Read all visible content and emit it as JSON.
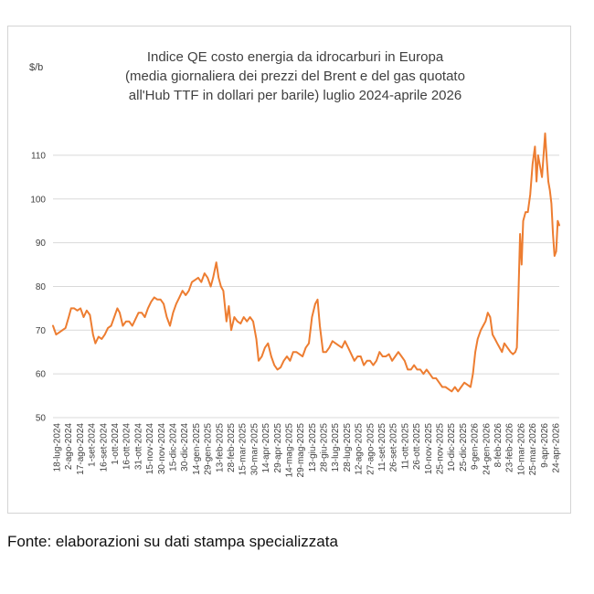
{
  "chart_data": {
    "type": "line",
    "title_lines": [
      "Indice QE costo  energia da idrocarburi in Europa",
      "(media giornaliera dei prezzi del Brent e del gas quotato",
      "all'Hub TTF in dollari per barile) luglio 2024-aprile 2026"
    ],
    "ylabel": "$/b",
    "xlabel": "",
    "ylim": [
      50,
      115
    ],
    "yticks": [
      50,
      60,
      70,
      80,
      90,
      100,
      110
    ],
    "grid": "horizontal",
    "line_color": "#ed7d31",
    "grid_color": "#d9d9d9",
    "x_ticks": [
      "18-lug-2024",
      "2-ago-2024",
      "17-ago-2024",
      "1-set-2024",
      "16-set-2024",
      "1-ott-2024",
      "16-ott-2024",
      "31-ott-2024",
      "15-nov-2024",
      "30-nov-2024",
      "15-dic-2024",
      "30-dic-2024",
      "14-gen-2025",
      "29-gen-2025",
      "13-feb-2025",
      "28-feb-2025",
      "15-mar-2025",
      "30-mar-2025",
      "14-apr-2025",
      "29-apr-2025",
      "14-mag-2025",
      "29-mag-2025",
      "13-giu-2025",
      "28-giu-2025",
      "13-lug-2025",
      "28-lug-2025",
      "12-ago-2025",
      "27-ago-2025",
      "11-set-2025",
      "26-set-2025",
      "11-ott-2025",
      "26-ott-2025",
      "10-nov-2025",
      "25-nov-2025",
      "10-dic-2025",
      "25-dic-2025",
      "9-gen-2026",
      "24-gen-2026",
      "8-feb-2026",
      "23-feb-2026",
      "10-mar-2026",
      "25-mar-2026",
      "9-apr-2026",
      "24-apr-2026"
    ],
    "x_range": [
      "2024-07-18",
      "2026-04-24"
    ],
    "series": [
      {
        "points": [
          [
            "2024-07-18",
            71
          ],
          [
            "2024-07-22",
            69
          ],
          [
            "2024-07-26",
            69.5
          ],
          [
            "2024-07-30",
            70
          ],
          [
            "2024-08-03",
            70.5
          ],
          [
            "2024-08-07",
            73
          ],
          [
            "2024-08-10",
            75
          ],
          [
            "2024-08-14",
            75
          ],
          [
            "2024-08-18",
            74.5
          ],
          [
            "2024-08-22",
            75
          ],
          [
            "2024-08-26",
            73
          ],
          [
            "2024-08-30",
            74.5
          ],
          [
            "2024-09-03",
            73.5
          ],
          [
            "2024-09-07",
            69
          ],
          [
            "2024-09-10",
            67
          ],
          [
            "2024-09-14",
            68.5
          ],
          [
            "2024-09-18",
            68
          ],
          [
            "2024-09-22",
            69
          ],
          [
            "2024-09-26",
            70.5
          ],
          [
            "2024-09-30",
            71
          ],
          [
            "2024-10-04",
            73
          ],
          [
            "2024-10-08",
            75
          ],
          [
            "2024-10-11",
            74
          ],
          [
            "2024-10-15",
            71
          ],
          [
            "2024-10-19",
            72
          ],
          [
            "2024-10-23",
            72
          ],
          [
            "2024-10-27",
            71
          ],
          [
            "2024-10-31",
            72.5
          ],
          [
            "2024-11-04",
            74
          ],
          [
            "2024-11-08",
            74
          ],
          [
            "2024-11-12",
            73
          ],
          [
            "2024-11-16",
            75
          ],
          [
            "2024-11-20",
            76.5
          ],
          [
            "2024-11-24",
            77.5
          ],
          [
            "2024-11-28",
            77
          ],
          [
            "2024-12-02",
            77
          ],
          [
            "2024-12-06",
            76
          ],
          [
            "2024-12-10",
            73
          ],
          [
            "2024-12-14",
            71
          ],
          [
            "2024-12-18",
            74
          ],
          [
            "2024-12-22",
            76
          ],
          [
            "2024-12-26",
            77.5
          ],
          [
            "2024-12-30",
            79
          ],
          [
            "2025-01-03",
            78
          ],
          [
            "2025-01-07",
            79
          ],
          [
            "2025-01-11",
            81
          ],
          [
            "2025-01-15",
            81.5
          ],
          [
            "2025-01-19",
            82
          ],
          [
            "2025-01-23",
            81
          ],
          [
            "2025-01-27",
            83
          ],
          [
            "2025-01-31",
            82
          ],
          [
            "2025-02-04",
            80
          ],
          [
            "2025-02-07",
            82
          ],
          [
            "2025-02-11",
            85.5
          ],
          [
            "2025-02-14",
            82
          ],
          [
            "2025-02-17",
            80
          ],
          [
            "2025-02-20",
            79
          ],
          [
            "2025-02-24",
            72
          ],
          [
            "2025-02-27",
            75.5
          ],
          [
            "2025-03-02",
            70
          ],
          [
            "2025-03-06",
            73
          ],
          [
            "2025-03-10",
            72
          ],
          [
            "2025-03-14",
            71.5
          ],
          [
            "2025-03-18",
            73
          ],
          [
            "2025-03-22",
            72
          ],
          [
            "2025-03-26",
            73
          ],
          [
            "2025-03-30",
            72
          ],
          [
            "2025-04-03",
            68
          ],
          [
            "2025-04-06",
            63
          ],
          [
            "2025-04-10",
            64
          ],
          [
            "2025-04-14",
            66
          ],
          [
            "2025-04-18",
            67
          ],
          [
            "2025-04-22",
            64
          ],
          [
            "2025-04-26",
            62
          ],
          [
            "2025-04-30",
            61
          ],
          [
            "2025-05-04",
            61.5
          ],
          [
            "2025-05-08",
            63
          ],
          [
            "2025-05-12",
            64
          ],
          [
            "2025-05-16",
            63
          ],
          [
            "2025-05-20",
            65
          ],
          [
            "2025-05-24",
            65
          ],
          [
            "2025-05-28",
            64.5
          ],
          [
            "2025-06-01",
            64
          ],
          [
            "2025-06-05",
            66
          ],
          [
            "2025-06-09",
            67
          ],
          [
            "2025-06-13",
            73
          ],
          [
            "2025-06-17",
            76
          ],
          [
            "2025-06-20",
            77
          ],
          [
            "2025-06-23",
            71
          ],
          [
            "2025-06-27",
            65
          ],
          [
            "2025-07-01",
            65
          ],
          [
            "2025-07-05",
            66
          ],
          [
            "2025-07-09",
            67.5
          ],
          [
            "2025-07-13",
            67
          ],
          [
            "2025-07-17",
            66.5
          ],
          [
            "2025-07-21",
            66
          ],
          [
            "2025-07-25",
            67.5
          ],
          [
            "2025-07-29",
            66
          ],
          [
            "2025-08-02",
            64.5
          ],
          [
            "2025-08-06",
            63
          ],
          [
            "2025-08-10",
            64
          ],
          [
            "2025-08-14",
            64
          ],
          [
            "2025-08-18",
            62
          ],
          [
            "2025-08-22",
            63
          ],
          [
            "2025-08-26",
            63
          ],
          [
            "2025-08-30",
            62
          ],
          [
            "2025-09-03",
            63
          ],
          [
            "2025-09-07",
            65
          ],
          [
            "2025-09-11",
            64
          ],
          [
            "2025-09-15",
            64
          ],
          [
            "2025-09-19",
            64.5
          ],
          [
            "2025-09-23",
            63
          ],
          [
            "2025-09-27",
            64
          ],
          [
            "2025-10-01",
            65
          ],
          [
            "2025-10-05",
            64
          ],
          [
            "2025-10-09",
            63
          ],
          [
            "2025-10-13",
            61
          ],
          [
            "2025-10-17",
            61
          ],
          [
            "2025-10-21",
            62
          ],
          [
            "2025-10-25",
            61
          ],
          [
            "2025-10-29",
            61
          ],
          [
            "2025-11-02",
            60
          ],
          [
            "2025-11-06",
            61
          ],
          [
            "2025-11-10",
            60
          ],
          [
            "2025-11-14",
            59
          ],
          [
            "2025-11-18",
            59
          ],
          [
            "2025-11-22",
            58
          ],
          [
            "2025-11-26",
            57
          ],
          [
            "2025-11-30",
            57
          ],
          [
            "2025-12-04",
            56.5
          ],
          [
            "2025-12-08",
            56
          ],
          [
            "2025-12-12",
            57
          ],
          [
            "2025-12-16",
            56
          ],
          [
            "2025-12-20",
            57
          ],
          [
            "2025-12-24",
            58
          ],
          [
            "2025-12-28",
            57.5
          ],
          [
            "2026-01-01",
            57
          ],
          [
            "2026-01-04",
            60
          ],
          [
            "2026-01-07",
            65
          ],
          [
            "2026-01-10",
            68
          ],
          [
            "2026-01-14",
            70
          ],
          [
            "2026-01-17",
            71
          ],
          [
            "2026-01-20",
            72
          ],
          [
            "2026-01-23",
            74
          ],
          [
            "2026-01-26",
            73
          ],
          [
            "2026-01-29",
            69
          ],
          [
            "2026-02-01",
            68
          ],
          [
            "2026-02-04",
            67
          ],
          [
            "2026-02-07",
            66
          ],
          [
            "2026-02-10",
            65
          ],
          [
            "2026-02-13",
            67
          ],
          [
            "2026-02-17",
            66
          ],
          [
            "2026-02-21",
            65
          ],
          [
            "2026-02-24",
            64.5
          ],
          [
            "2026-02-27",
            65
          ],
          [
            "2026-03-01",
            66
          ],
          [
            "2026-03-03",
            78
          ],
          [
            "2026-03-05",
            92
          ],
          [
            "2026-03-07",
            85
          ],
          [
            "2026-03-09",
            95
          ],
          [
            "2026-03-12",
            97
          ],
          [
            "2026-03-15",
            97
          ],
          [
            "2026-03-18",
            101
          ],
          [
            "2026-03-21",
            108
          ],
          [
            "2026-03-24",
            112
          ],
          [
            "2026-03-26",
            104
          ],
          [
            "2026-03-28",
            110
          ],
          [
            "2026-03-31",
            107
          ],
          [
            "2026-04-02",
            105
          ],
          [
            "2026-04-04",
            110
          ],
          [
            "2026-04-06",
            115
          ],
          [
            "2026-04-08",
            109
          ],
          [
            "2026-04-10",
            104
          ],
          [
            "2026-04-12",
            102
          ],
          [
            "2026-04-14",
            99
          ],
          [
            "2026-04-16",
            92
          ],
          [
            "2026-04-18",
            87
          ],
          [
            "2026-04-20",
            88
          ],
          [
            "2026-04-22",
            95
          ],
          [
            "2026-04-24",
            94
          ]
        ]
      }
    ]
  },
  "footer": {
    "source": "Fonte: elaborazioni su dati stampa specializzata"
  }
}
